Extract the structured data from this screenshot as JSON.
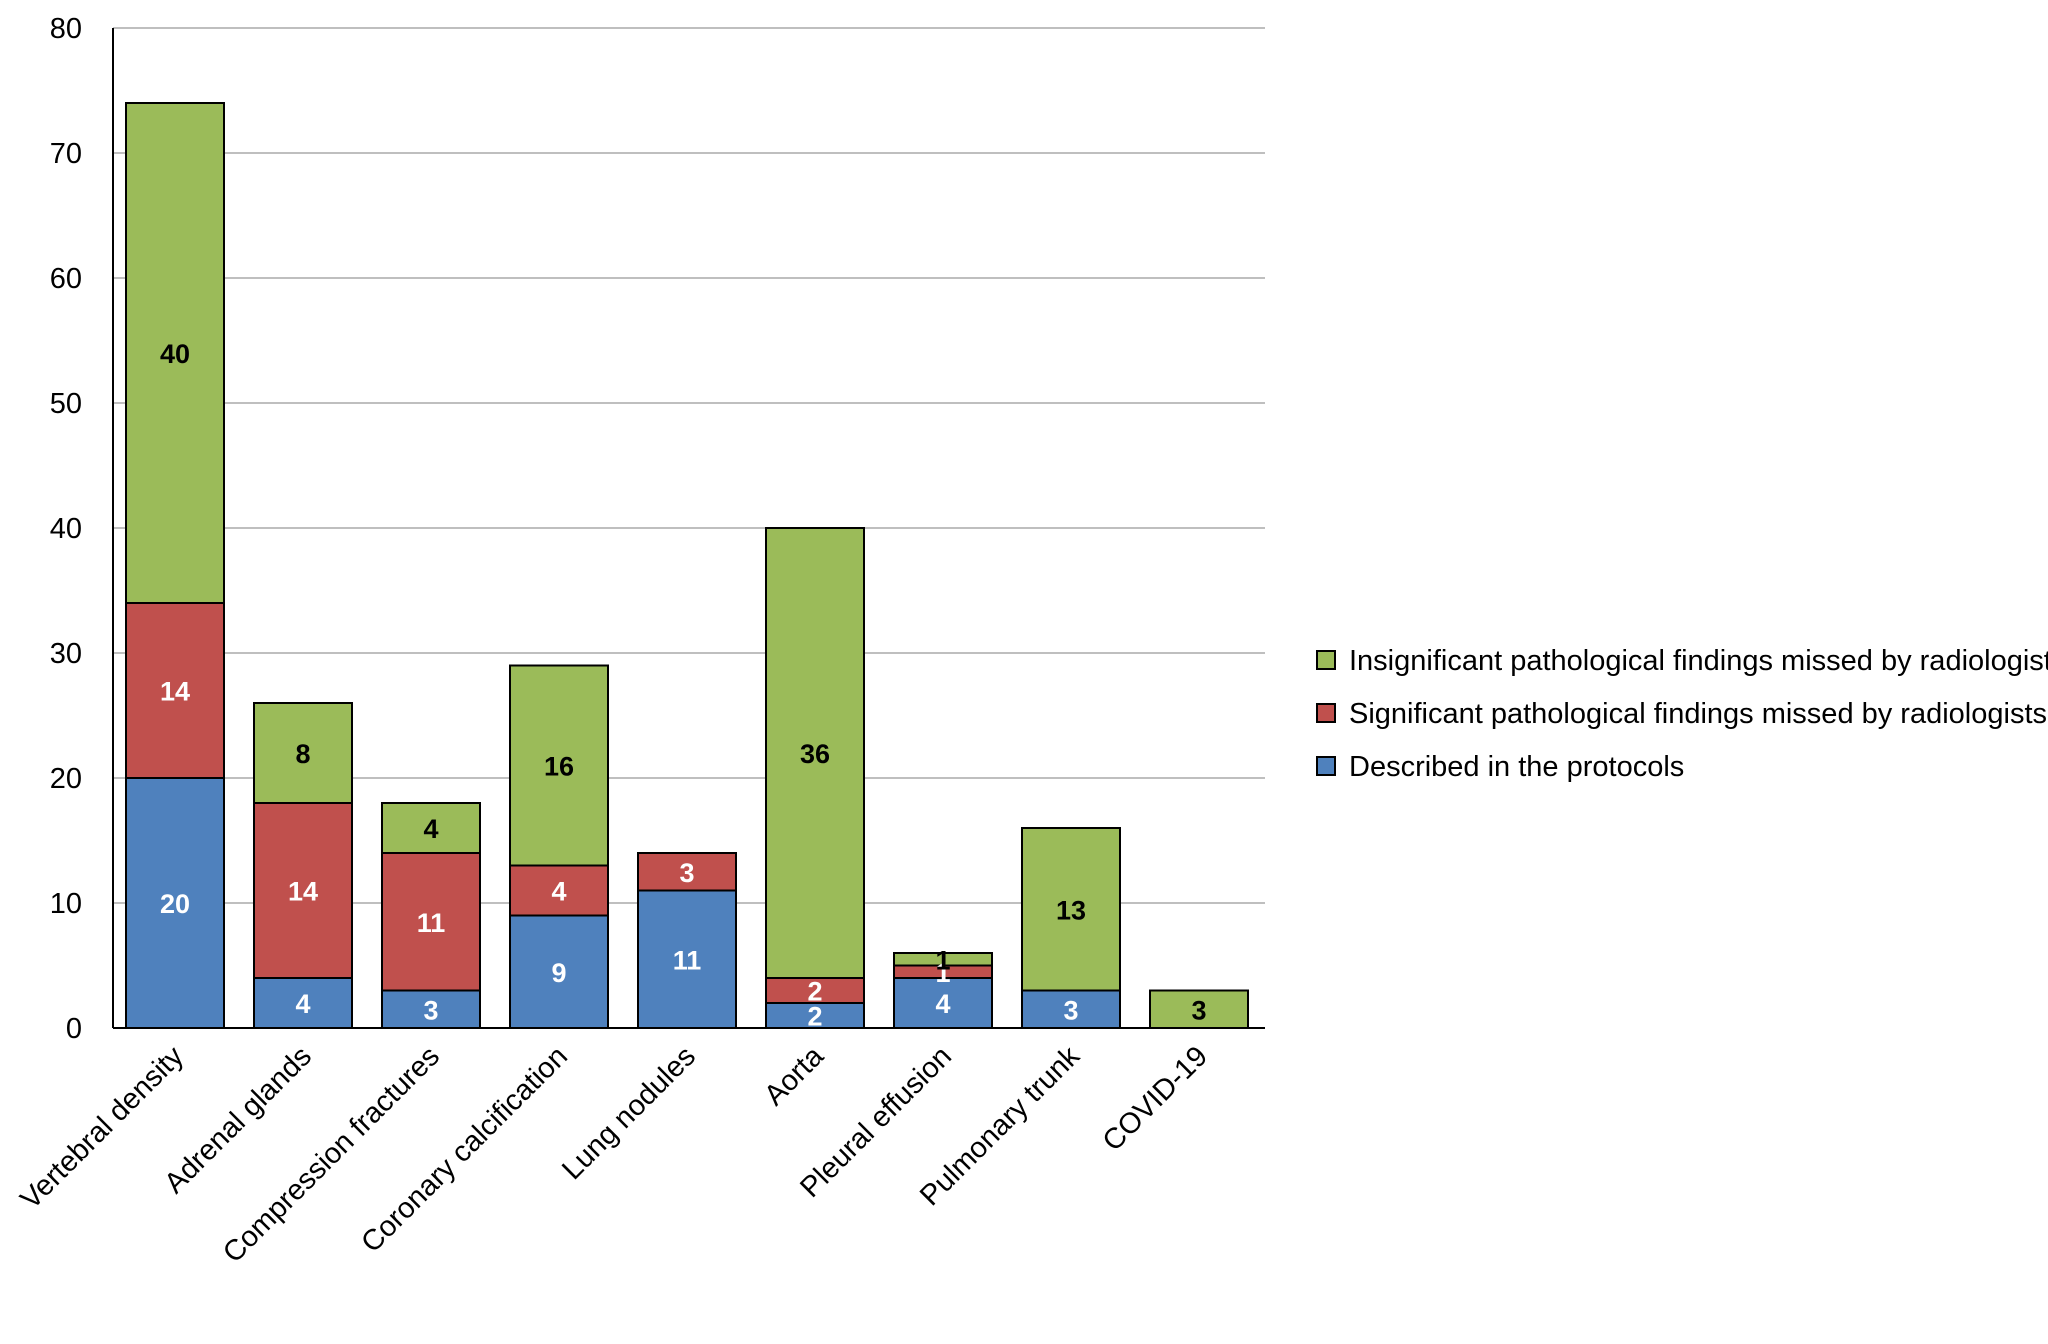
{
  "chart_data": {
    "type": "bar",
    "stacked": true,
    "title": "",
    "xlabel": "",
    "ylabel": "",
    "ylim": [
      0,
      80
    ],
    "yticks": [
      0,
      10,
      20,
      30,
      40,
      50,
      60,
      70,
      80
    ],
    "grid": true,
    "legend_position": "right",
    "categories": [
      "Vertebral density",
      "Adrenal glands",
      "Compression fractures",
      "Coronary calcification",
      "Lung nodules",
      "Aorta",
      "Pleural effusion",
      "Pulmonary trunk",
      "COVID-19"
    ],
    "series": [
      {
        "name": "Described in the protocols",
        "color": "#4f81bd",
        "label_color": "#ffffff",
        "values": [
          20,
          4,
          3,
          9,
          11,
          2,
          4,
          3,
          0
        ]
      },
      {
        "name": "Significant pathological findings missed by radiologists",
        "color": "#c0504d",
        "label_color": "#ffffff",
        "values": [
          14,
          14,
          11,
          4,
          3,
          2,
          1,
          0,
          0
        ]
      },
      {
        "name": "Insignificant pathological findings missed by radiologists",
        "color": "#9bbb59",
        "label_color": "#000000",
        "values": [
          40,
          8,
          4,
          16,
          0,
          36,
          1,
          13,
          3
        ]
      }
    ],
    "legend_order": [
      2,
      1,
      0
    ]
  }
}
